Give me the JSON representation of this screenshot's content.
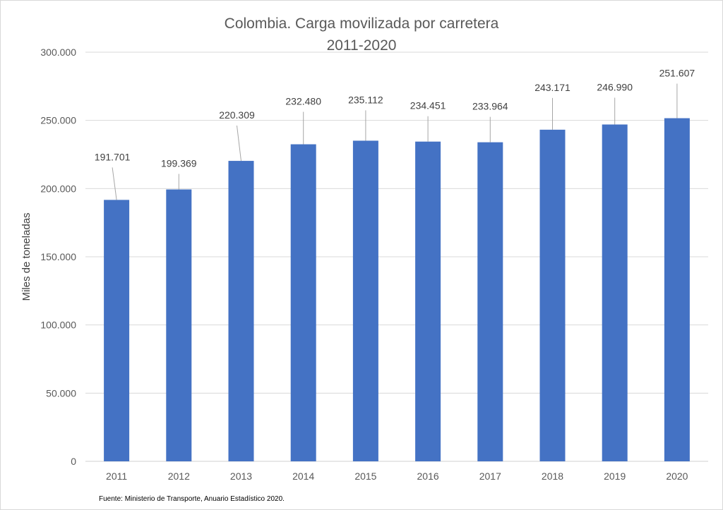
{
  "chart_data": {
    "type": "bar",
    "title": "Colombia. Carga movilizada por carretera",
    "subtitle": "2011-2020",
    "xlabel": "",
    "ylabel": "Miles de toneladas",
    "categories": [
      "2011",
      "2012",
      "2013",
      "2014",
      "2015",
      "2016",
      "2017",
      "2018",
      "2019",
      "2020"
    ],
    "values": [
      191701,
      199369,
      220309,
      232480,
      235112,
      234451,
      233964,
      243171,
      246990,
      251607
    ],
    "data_labels": [
      "191.701",
      "199.369",
      "220.309",
      "232.480",
      "235.112",
      "234.451",
      "233.964",
      "243.171",
      "246.990",
      "251.607"
    ],
    "ylim": [
      0,
      300000
    ],
    "yticks": [
      0,
      50000,
      100000,
      150000,
      200000,
      250000,
      300000
    ],
    "ytick_labels": [
      "0",
      "50.000",
      "100.000",
      "150.000",
      "200.000",
      "250.000",
      "300.000"
    ],
    "grid": true,
    "legend": "none",
    "bar_color": "#4472C4",
    "source": "Fuente: Ministerio de Transporte, Anuario Estadístico 2020."
  }
}
